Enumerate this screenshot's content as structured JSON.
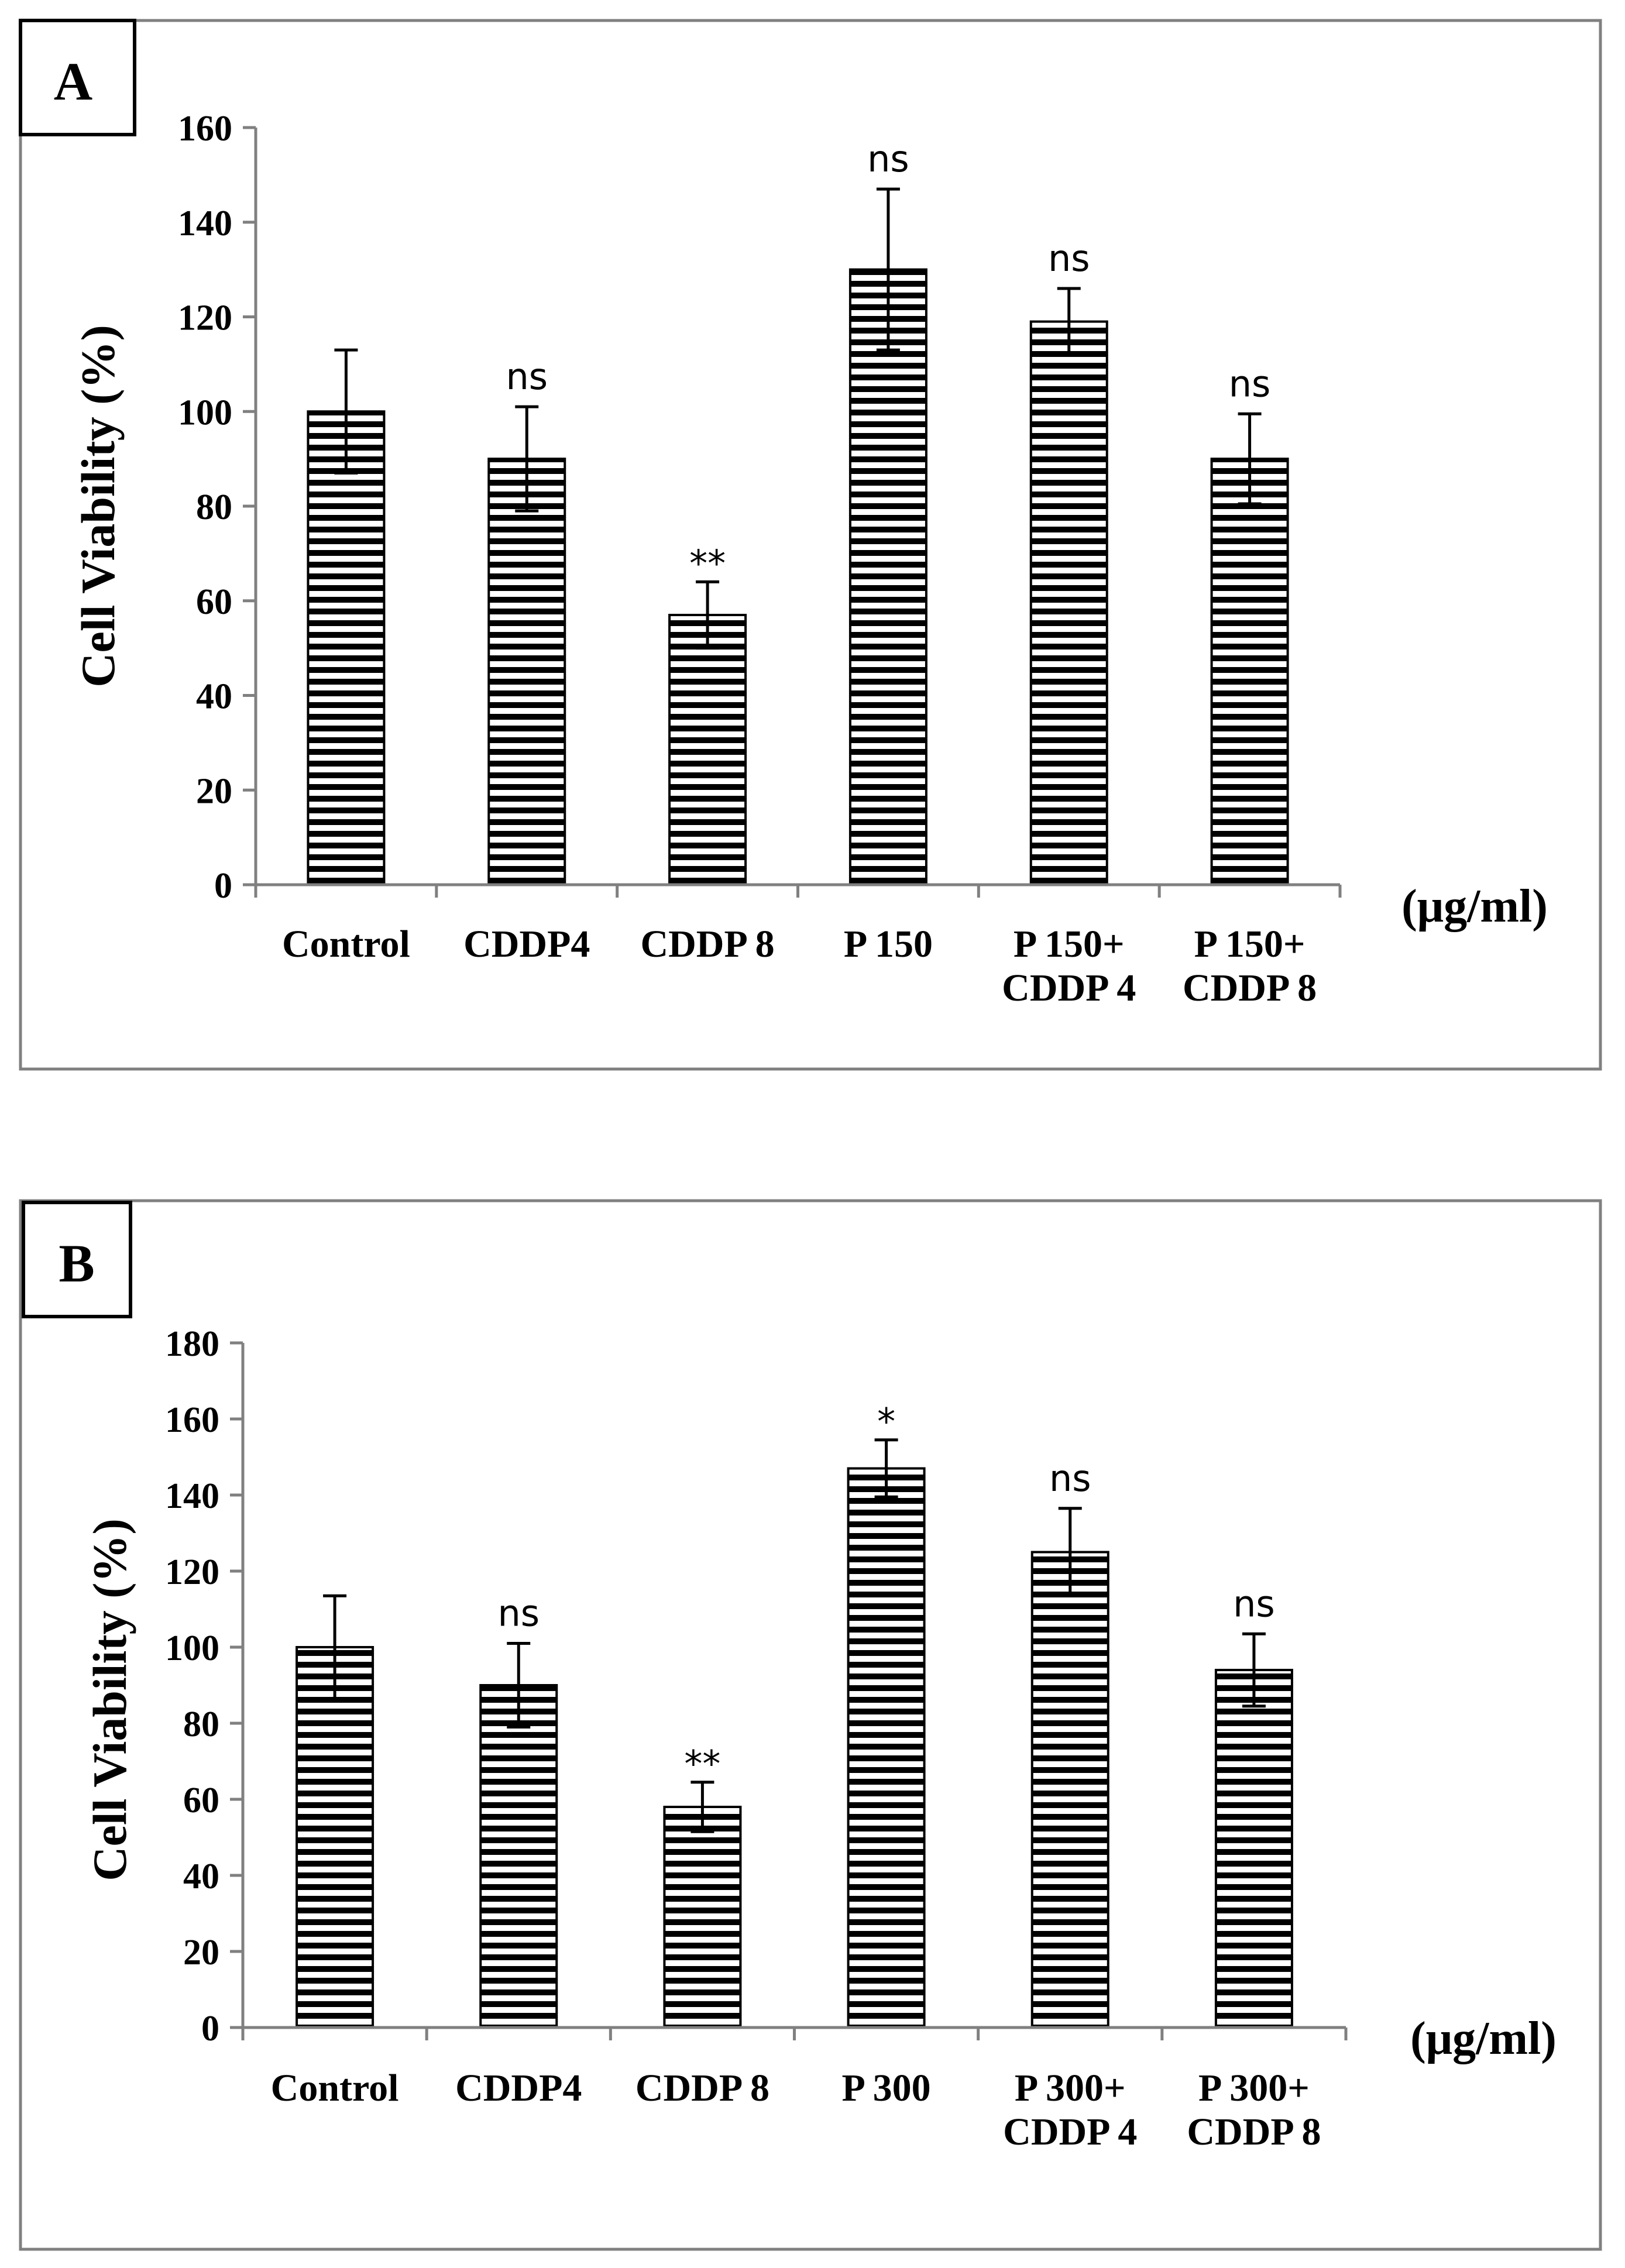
{
  "colors": {
    "bar_fill": "#ffffff",
    "bar_stripe": "#000000",
    "frame": "#808080",
    "axis": "#808080"
  },
  "chart_data": [
    {
      "type": "bar",
      "panel": "A",
      "ylabel": "Cell Viability  (%)",
      "xlabel": "(μg/ml)",
      "ylim": [
        0,
        160
      ],
      "yticks": [
        0,
        20,
        40,
        60,
        80,
        100,
        120,
        140,
        160
      ],
      "categories": [
        [
          "Control"
        ],
        [
          "CDDP4"
        ],
        [
          "CDDP 8"
        ],
        [
          "P 150"
        ],
        [
          "P 150+",
          "CDDP 4"
        ],
        [
          "P 150+",
          "CDDP 8"
        ]
      ],
      "values": [
        100,
        90,
        57,
        130,
        119,
        90
      ],
      "errors": [
        13,
        11,
        7,
        17,
        7,
        9.5
      ],
      "significance": [
        "",
        "ns",
        "**",
        "ns",
        "ns",
        "ns"
      ]
    },
    {
      "type": "bar",
      "panel": "B",
      "ylabel": "Cell Viability  (%)",
      "xlabel": "(μg/ml)",
      "ylim": [
        0,
        180
      ],
      "yticks": [
        0,
        20,
        40,
        60,
        80,
        100,
        120,
        140,
        160,
        180
      ],
      "categories": [
        [
          "Control"
        ],
        [
          "CDDP4"
        ],
        [
          "CDDP 8"
        ],
        [
          "P 300"
        ],
        [
          "P 300+",
          "CDDP 4"
        ],
        [
          "P 300+",
          "CDDP 8"
        ]
      ],
      "values": [
        100,
        90,
        58,
        147,
        125,
        94
      ],
      "errors": [
        13.5,
        11,
        6.5,
        7.5,
        11.5,
        9.5
      ],
      "significance": [
        "",
        "ns",
        "**",
        "*",
        "ns",
        "ns"
      ]
    }
  ]
}
